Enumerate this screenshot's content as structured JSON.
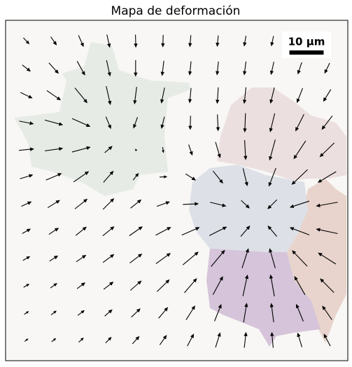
{
  "chart_data": {
    "type": "quiver",
    "title": "Mapa de deformación",
    "x": [
      6,
      14,
      22,
      30,
      38,
      46,
      54,
      62,
      70,
      78,
      86,
      94
    ],
    "y": [
      6,
      14,
      22,
      30,
      38,
      46,
      54,
      62,
      70,
      78,
      86,
      94
    ],
    "xlim": [
      0,
      100
    ],
    "ylim": [
      0,
      100
    ],
    "y_inverted": true,
    "color": "#000000",
    "u": [
      [
        1.6,
        1.6,
        1.4,
        0.8,
        0.1,
        -0.1,
        -0.3,
        -0.3,
        -0.5,
        -0.6,
        -0.8,
        -1.0
      ],
      [
        2.3,
        2.7,
        2.2,
        1.0,
        0,
        -0.5,
        -0.4,
        -0.4,
        -0.5,
        -0.8,
        -1.1,
        -1.4
      ],
      [
        3.3,
        3.9,
        3.5,
        1.2,
        -0.6,
        -0.9,
        -0.4,
        -0.3,
        -0.5,
        -1.1,
        -1.6,
        -2.1
      ],
      [
        4.0,
        5.1,
        5.1,
        1.4,
        -1.1,
        -0.8,
        -0.1,
        0.2,
        -0.2,
        -1.3,
        -2.4,
        -3.0
      ],
      [
        4.2,
        5.1,
        5.2,
        2.1,
        -0.1,
        0.2,
        1.0,
        1.3,
        0.3,
        -1.6,
        -3.4,
        -4.1
      ],
      [
        3.6,
        4.4,
        4.3,
        2.8,
        1.5,
        2.0,
        2.8,
        2.8,
        1.2,
        -2.0,
        -4.5,
        -5.2
      ],
      [
        2.8,
        3.4,
        3.5,
        3.1,
        3.0,
        3.6,
        4.4,
        4.5,
        2.3,
        -2.6,
        -5.5,
        -6.1
      ],
      [
        2.3,
        2.7,
        3.0,
        3.2,
        3.7,
        4.3,
        5.0,
        4.9,
        2.6,
        -2.5,
        -5.5,
        -6.1
      ],
      [
        1.9,
        2.3,
        2.7,
        3.1,
        3.4,
        4.1,
        4.4,
        3.9,
        1.8,
        -1.6,
        -4.3,
        -5.0
      ],
      [
        1.5,
        1.8,
        2.2,
        2.7,
        3.1,
        3.5,
        3.5,
        2.8,
        1.3,
        -1.1,
        -3.0,
        -3.9
      ],
      [
        1.2,
        1.4,
        1.8,
        2.1,
        2.5,
        2.6,
        2.5,
        1.9,
        0.9,
        -0.7,
        -2.0,
        -2.7
      ],
      [
        0.9,
        1.1,
        1.3,
        1.6,
        1.9,
        1.9,
        1.8,
        1.3,
        0.5,
        -0.4,
        -1.2,
        -1.8
      ]
    ],
    "v": [
      [
        1.7,
        2.3,
        3.2,
        3.6,
        3.6,
        3.4,
        3.3,
        3.1,
        2.9,
        2.8,
        2.5,
        2.3
      ],
      [
        1.8,
        3.0,
        4.0,
        4.5,
        4.6,
        4.2,
        3.9,
        3.8,
        3.8,
        3.6,
        3.3,
        2.9
      ],
      [
        1.6,
        2.7,
        4.3,
        5.3,
        4.9,
        4.4,
        4.2,
        4.6,
        4.6,
        4.5,
        4.1,
        3.4
      ],
      [
        0.8,
        1.4,
        2.3,
        3.4,
        3.1,
        3.3,
        3.9,
        4.7,
        5.4,
        5.3,
        4.8,
        3.9
      ],
      [
        -0.4,
        -0.7,
        -1.4,
        -1.8,
        -0.1,
        1.5,
        3.0,
        4.5,
        5.6,
        5.9,
        5.2,
        4.0
      ],
      [
        -1.1,
        -1.9,
        -3.0,
        -3.2,
        -1.9,
        -0.1,
        1.8,
        3.5,
        5.0,
        5.2,
        4.3,
        3.1
      ],
      [
        -1.3,
        -2.1,
        -2.8,
        -3.1,
        -2.4,
        -1.3,
        -0.2,
        1.1,
        2.2,
        2.6,
        1.8,
        1.1
      ],
      [
        -1.3,
        -1.8,
        -2.4,
        -2.6,
        -2.6,
        -2.3,
        -2.2,
        -2.5,
        -3.0,
        -3.0,
        -2.1,
        -1.3
      ],
      [
        -1.1,
        -1.5,
        -1.9,
        -2.3,
        -2.6,
        -3.0,
        -3.7,
        -4.7,
        -5.6,
        -5.6,
        -4.5,
        -3.2
      ],
      [
        -0.9,
        -1.3,
        -1.7,
        -2.1,
        -2.7,
        -3.4,
        -4.1,
        -5.2,
        -6.1,
        -6.2,
        -5.3,
        -4.0
      ],
      [
        -0.8,
        -1.1,
        -1.4,
        -1.8,
        -2.4,
        -3.1,
        -4.0,
        -4.8,
        -5.5,
        -5.4,
        -4.9,
        -3.9
      ],
      [
        -0.7,
        -0.9,
        -1.2,
        -1.6,
        -2.1,
        -2.7,
        -3.4,
        -4.2,
        -4.4,
        -4.4,
        -4.0,
        -3.4
      ]
    ],
    "scale_bar": {
      "label": "10 µm",
      "length": 10
    }
  }
}
